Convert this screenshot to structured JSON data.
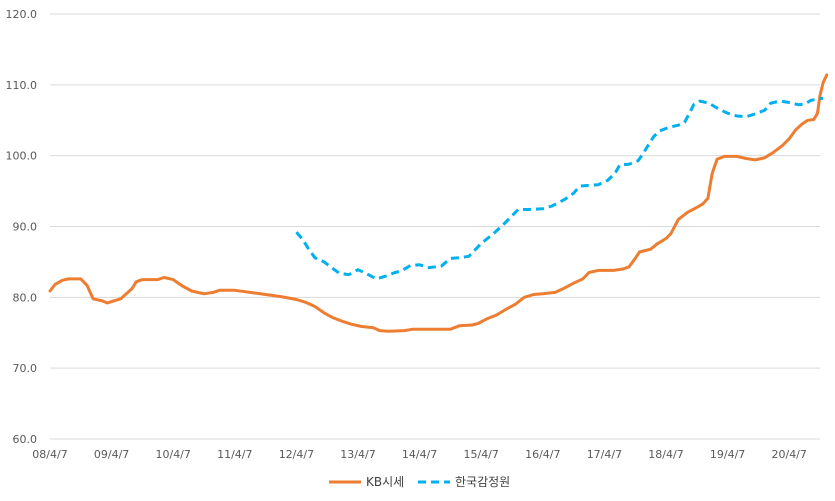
{
  "chart_data": {
    "type": "line",
    "title": "",
    "xlabel": "",
    "ylabel": "",
    "ylim": [
      60,
      120
    ],
    "yticks": [
      60,
      70,
      80,
      90,
      100,
      110,
      120
    ],
    "ytick_labels": [
      "60.0",
      "70.0",
      "80.0",
      "90.0",
      "100.0",
      "110.0",
      "120.0"
    ],
    "xlim": [
      2008.25,
      2020.75
    ],
    "xticks": [
      2008.25,
      2009.25,
      2010.25,
      2011.25,
      2012.25,
      2013.25,
      2014.25,
      2015.25,
      2016.25,
      2017.25,
      2018.25,
      2019.25,
      2020.25
    ],
    "xtick_labels": [
      "08/4/7",
      "09/4/7",
      "10/4/7",
      "11/4/7",
      "12/4/7",
      "13/4/7",
      "14/4/7",
      "15/4/7",
      "16/4/7",
      "17/4/7",
      "18/4/7",
      "19/4/7",
      "20/4/7"
    ],
    "grid": true,
    "legend_position": "bottom",
    "series": [
      {
        "name": "KB시세",
        "color": "#ED7D31",
        "style": "solid",
        "points": [
          [
            2008.25,
            80.9
          ],
          [
            2008.33,
            81.8
          ],
          [
            2008.45,
            82.4
          ],
          [
            2008.55,
            82.6
          ],
          [
            2008.75,
            82.6
          ],
          [
            2008.85,
            81.7
          ],
          [
            2008.95,
            79.8
          ],
          [
            2009.1,
            79.5
          ],
          [
            2009.18,
            79.2
          ],
          [
            2009.25,
            79.4
          ],
          [
            2009.4,
            79.8
          ],
          [
            2009.5,
            80.6
          ],
          [
            2009.58,
            81.2
          ],
          [
            2009.65,
            82.2
          ],
          [
            2009.75,
            82.5
          ],
          [
            2010.0,
            82.5
          ],
          [
            2010.1,
            82.8
          ],
          [
            2010.25,
            82.5
          ],
          [
            2010.4,
            81.6
          ],
          [
            2010.55,
            80.9
          ],
          [
            2010.75,
            80.5
          ],
          [
            2010.9,
            80.7
          ],
          [
            2011.0,
            81.0
          ],
          [
            2011.25,
            81.0
          ],
          [
            2011.5,
            80.7
          ],
          [
            2011.75,
            80.4
          ],
          [
            2012.0,
            80.1
          ],
          [
            2012.25,
            79.7
          ],
          [
            2012.4,
            79.3
          ],
          [
            2012.55,
            78.7
          ],
          [
            2012.7,
            77.8
          ],
          [
            2012.85,
            77.1
          ],
          [
            2013.0,
            76.6
          ],
          [
            2013.15,
            76.2
          ],
          [
            2013.3,
            75.9
          ],
          [
            2013.5,
            75.7
          ],
          [
            2013.6,
            75.3
          ],
          [
            2013.75,
            75.2
          ],
          [
            2014.0,
            75.3
          ],
          [
            2014.15,
            75.5
          ],
          [
            2014.5,
            75.5
          ],
          [
            2014.75,
            75.5
          ],
          [
            2014.9,
            76.0
          ],
          [
            2015.1,
            76.1
          ],
          [
            2015.2,
            76.3
          ],
          [
            2015.35,
            77.0
          ],
          [
            2015.5,
            77.5
          ],
          [
            2015.65,
            78.3
          ],
          [
            2015.8,
            79.0
          ],
          [
            2015.95,
            80.0
          ],
          [
            2016.1,
            80.4
          ],
          [
            2016.25,
            80.5
          ],
          [
            2016.45,
            80.7
          ],
          [
            2016.6,
            81.3
          ],
          [
            2016.75,
            82.0
          ],
          [
            2016.9,
            82.6
          ],
          [
            2017.0,
            83.5
          ],
          [
            2017.15,
            83.8
          ],
          [
            2017.4,
            83.8
          ],
          [
            2017.55,
            84.0
          ],
          [
            2017.65,
            84.3
          ],
          [
            2017.75,
            85.5
          ],
          [
            2017.82,
            86.4
          ],
          [
            2018.0,
            86.8
          ],
          [
            2018.1,
            87.5
          ],
          [
            2018.25,
            88.3
          ],
          [
            2018.33,
            89.0
          ],
          [
            2018.45,
            91.0
          ],
          [
            2018.6,
            92.0
          ],
          [
            2018.75,
            92.7
          ],
          [
            2018.85,
            93.2
          ],
          [
            2018.93,
            94.0
          ],
          [
            2019.0,
            97.5
          ],
          [
            2019.08,
            99.5
          ],
          [
            2019.2,
            99.9
          ],
          [
            2019.4,
            99.9
          ],
          [
            2019.55,
            99.6
          ],
          [
            2019.7,
            99.4
          ],
          [
            2019.85,
            99.7
          ],
          [
            2020.0,
            100.5
          ],
          [
            2020.15,
            101.5
          ],
          [
            2020.25,
            102.4
          ],
          [
            2020.35,
            103.6
          ],
          [
            2020.45,
            104.4
          ],
          [
            2020.55,
            105.0
          ],
          [
            2020.65,
            105.1
          ],
          [
            2020.71,
            106.0
          ],
          [
            2020.75,
            108.5
          ],
          [
            2020.8,
            110.3
          ],
          [
            2020.86,
            111.4
          ]
        ]
      },
      {
        "name": "한국감정원",
        "color": "#00B0F0",
        "style": "dashed",
        "points": [
          [
            2012.25,
            89.2
          ],
          [
            2012.35,
            88.2
          ],
          [
            2012.45,
            86.8
          ],
          [
            2012.55,
            85.6
          ],
          [
            2012.7,
            85.0
          ],
          [
            2012.85,
            84.0
          ],
          [
            2012.95,
            83.4
          ],
          [
            2013.1,
            83.2
          ],
          [
            2013.25,
            83.9
          ],
          [
            2013.4,
            83.3
          ],
          [
            2013.55,
            82.6
          ],
          [
            2013.7,
            83.0
          ],
          [
            2013.85,
            83.5
          ],
          [
            2013.95,
            83.7
          ],
          [
            2014.1,
            84.5
          ],
          [
            2014.25,
            84.6
          ],
          [
            2014.4,
            84.2
          ],
          [
            2014.6,
            84.4
          ],
          [
            2014.75,
            85.5
          ],
          [
            2014.9,
            85.6
          ],
          [
            2015.05,
            85.8
          ],
          [
            2015.25,
            87.6
          ],
          [
            2015.45,
            89.0
          ],
          [
            2015.6,
            90.2
          ],
          [
            2015.75,
            91.5
          ],
          [
            2015.85,
            92.4
          ],
          [
            2016.0,
            92.4
          ],
          [
            2016.25,
            92.5
          ],
          [
            2016.4,
            92.9
          ],
          [
            2016.6,
            93.8
          ],
          [
            2016.75,
            94.7
          ],
          [
            2016.85,
            95.7
          ],
          [
            2017.0,
            95.8
          ],
          [
            2017.15,
            95.9
          ],
          [
            2017.3,
            96.5
          ],
          [
            2017.42,
            97.5
          ],
          [
            2017.5,
            98.7
          ],
          [
            2017.65,
            98.8
          ],
          [
            2017.8,
            99.3
          ],
          [
            2017.9,
            100.6
          ],
          [
            2018.05,
            102.7
          ],
          [
            2018.15,
            103.5
          ],
          [
            2018.3,
            104.0
          ],
          [
            2018.45,
            104.3
          ],
          [
            2018.55,
            104.7
          ],
          [
            2018.62,
            105.8
          ],
          [
            2018.7,
            107.2
          ],
          [
            2018.8,
            107.7
          ],
          [
            2018.95,
            107.4
          ],
          [
            2019.1,
            106.6
          ],
          [
            2019.25,
            106.0
          ],
          [
            2019.4,
            105.6
          ],
          [
            2019.55,
            105.5
          ],
          [
            2019.7,
            105.9
          ],
          [
            2019.85,
            106.4
          ],
          [
            2019.95,
            107.4
          ],
          [
            2020.1,
            107.7
          ],
          [
            2020.25,
            107.5
          ],
          [
            2020.4,
            107.2
          ],
          [
            2020.5,
            107.3
          ],
          [
            2020.6,
            107.8
          ],
          [
            2020.7,
            108.0
          ],
          [
            2020.8,
            108.1
          ]
        ]
      }
    ]
  }
}
